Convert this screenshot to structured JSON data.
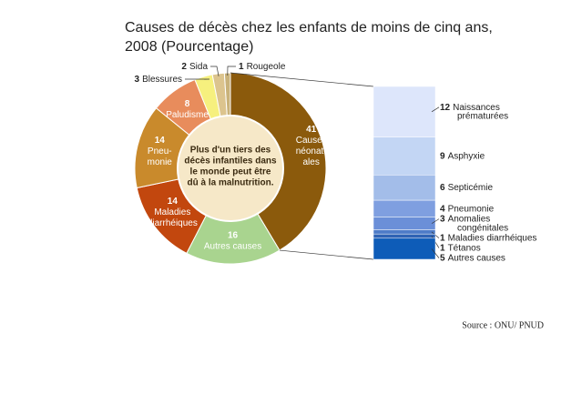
{
  "chart_data": [
    {
      "type": "donut",
      "title": "Causes de décès chez les enfants de moins de cinq ans, 2008 (Pourcentage)",
      "note": [
        "Plus d'un tiers des",
        "décès infantiles dans",
        "le monde peut être",
        "dû à la malnutrition."
      ],
      "values": [
        41,
        16,
        14,
        14,
        8,
        3,
        2,
        1
      ],
      "labels": [
        [
          "Causes",
          "néonat-",
          "ales"
        ],
        [
          "Autres causes"
        ],
        [
          "Maladies",
          "diarrhéiques"
        ],
        [
          "Pneu-",
          "monie"
        ],
        [
          "Paludisme"
        ],
        [
          "Blessures"
        ],
        [
          "Sida"
        ],
        [
          "Rougeole"
        ]
      ],
      "colors": [
        "#8b5a0c",
        "#a9d48f",
        "#c2470e",
        "#c98a2c",
        "#e88c5c",
        "#f6f07e",
        "#dcc48e",
        "#c9b27a"
      ],
      "source": "Source : ONU/ PNUD"
    },
    {
      "type": "stacked-bar",
      "values": [
        12,
        9,
        6,
        4,
        3,
        1,
        1,
        5
      ],
      "labels": [
        [
          "Naissances",
          "prématurées"
        ],
        [
          "Asphyxie"
        ],
        [
          "Septicémie"
        ],
        [
          "Pneumonie"
        ],
        [
          "Anomalies",
          "congénitales"
        ],
        [
          "Maladies diarrhéiques"
        ],
        [
          "Tétanos"
        ],
        [
          "Autres causes"
        ]
      ],
      "colors": [
        "#dde6fb",
        "#c3d6f4",
        "#a3bde9",
        "#7f9fe0",
        "#6b8fd8",
        "#4f7cc8",
        "#2f63b4",
        "#0e5cb8"
      ]
    }
  ]
}
